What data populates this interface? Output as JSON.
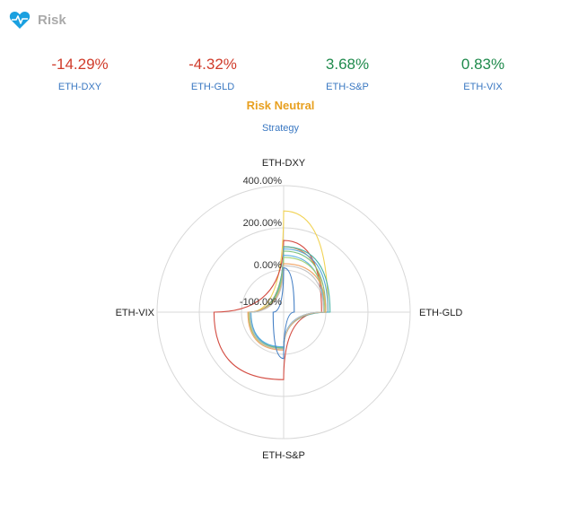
{
  "header": {
    "title": "Risk",
    "icon": "heart-pulse-icon",
    "icon_color": "#1aa0e0"
  },
  "metrics": [
    {
      "value": "-14.29%",
      "label": "ETH-DXY",
      "color": "#d03b2a"
    },
    {
      "value": "-4.32%",
      "label": "ETH-GLD",
      "color": "#d03b2a"
    },
    {
      "value": "3.68%",
      "label": "ETH-S&P",
      "color": "#1f8a4c"
    },
    {
      "value": "0.83%",
      "label": "ETH-VIX",
      "color": "#1f8a4c"
    }
  ],
  "regime": {
    "label": "Risk Neutral",
    "color": "#e8a020",
    "sublabel": "Strategy"
  },
  "chart_data": {
    "type": "radar",
    "axes": [
      "ETH-DXY",
      "ETH-GLD",
      "ETH-S&P",
      "ETH-VIX"
    ],
    "radial_ticks": [
      "400.00%",
      "200.00%",
      "0.00%",
      "-100.00%"
    ],
    "radial_range": [
      -200,
      400
    ],
    "grid": true,
    "series": [
      {
        "color": "#f0d04a",
        "values": [
          280,
          10,
          -25,
          -40
        ]
      },
      {
        "color": "#d2453a",
        "values": [
          140,
          -20,
          120,
          130
        ]
      },
      {
        "color": "#e08040",
        "values": [
          110,
          -10,
          -30,
          -35
        ]
      },
      {
        "color": "#40b0a0",
        "values": [
          110,
          20,
          -30,
          -40
        ]
      },
      {
        "color": "#4aa3d8",
        "values": [
          100,
          10,
          -35,
          -45
        ]
      },
      {
        "color": "#7ac07a",
        "values": [
          90,
          0,
          -30,
          -40
        ]
      },
      {
        "color": "#5ab0e0",
        "values": [
          70,
          -10,
          -35,
          -40
        ]
      },
      {
        "color": "#a0d070",
        "values": [
          60,
          -5,
          -25,
          -35
        ]
      },
      {
        "color": "#f0a060",
        "values": [
          30,
          0,
          -20,
          -30
        ]
      },
      {
        "color": "#c0c0c0",
        "values": [
          20,
          -10,
          -25,
          -40
        ]
      },
      {
        "color": "#3a78c2",
        "values": [
          10,
          -150,
          20,
          -150
        ]
      }
    ]
  }
}
